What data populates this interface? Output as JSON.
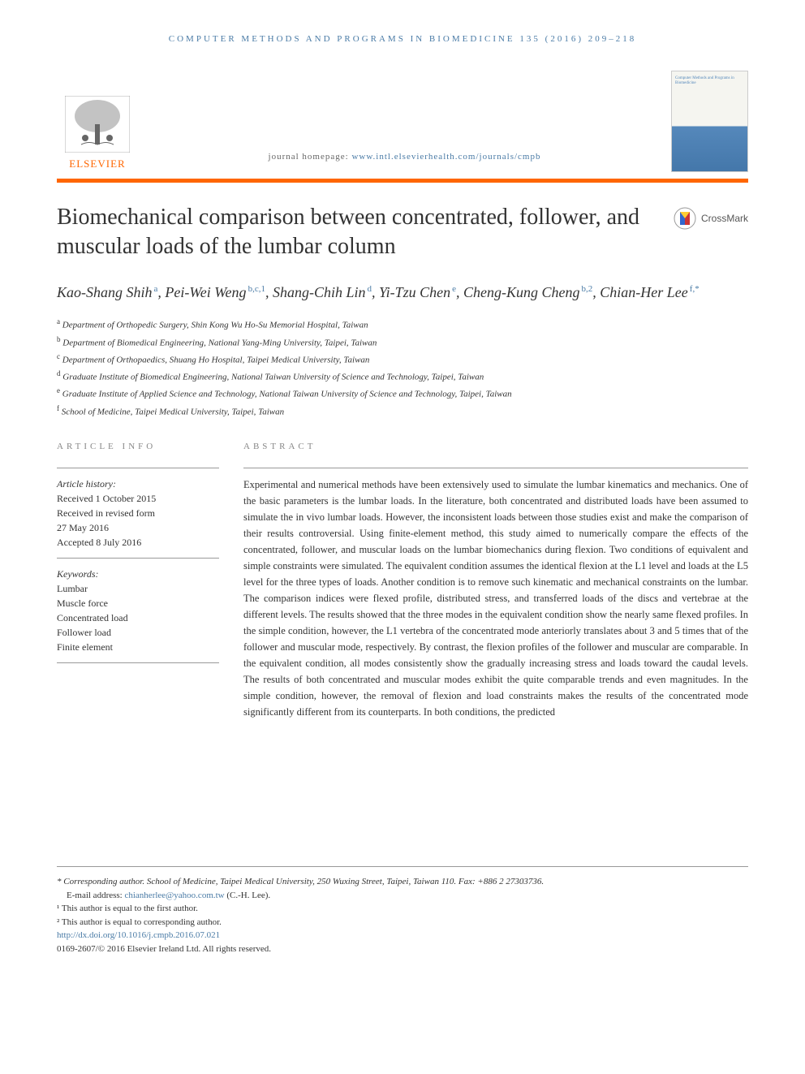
{
  "running_header": "COMPUTER METHODS AND PROGRAMS IN BIOMEDICINE 135 (2016) 209–218",
  "journal_homepage_label": "journal homepage: ",
  "journal_homepage_url": "www.intl.elsevierhealth.com/journals/cmpb",
  "publisher": "ELSEVIER",
  "journal_cover_title": "Computer Methods and Programs in Biomedicine",
  "crossmark_label": "CrossMark",
  "title": "Biomechanical comparison between concentrated, follower, and muscular loads of the lumbar column",
  "authors": [
    {
      "name": "Kao-Shang Shih",
      "affil": "a"
    },
    {
      "name": "Pei-Wei Weng",
      "affil": "b,c,1"
    },
    {
      "name": "Shang-Chih Lin",
      "affil": "d"
    },
    {
      "name": "Yi-Tzu Chen",
      "affil": "e"
    },
    {
      "name": "Cheng-Kung Cheng",
      "affil": "b,2"
    },
    {
      "name": "Chian-Her Lee",
      "affil": "f,*"
    }
  ],
  "affiliations": [
    {
      "sup": "a",
      "text": "Department of Orthopedic Surgery, Shin Kong Wu Ho-Su Memorial Hospital, Taiwan"
    },
    {
      "sup": "b",
      "text": "Department of Biomedical Engineering, National Yang-Ming University, Taipei, Taiwan"
    },
    {
      "sup": "c",
      "text": "Department of Orthopaedics, Shuang Ho Hospital, Taipei Medical University, Taiwan"
    },
    {
      "sup": "d",
      "text": "Graduate Institute of Biomedical Engineering, National Taiwan University of Science and Technology, Taipei, Taiwan"
    },
    {
      "sup": "e",
      "text": "Graduate Institute of Applied Science and Technology, National Taiwan University of Science and Technology, Taipei, Taiwan"
    },
    {
      "sup": "f",
      "text": "School of Medicine, Taipei Medical University, Taipei, Taiwan"
    }
  ],
  "article_info_header": "ARTICLE INFO",
  "abstract_header": "ABSTRACT",
  "article_history_label": "Article history:",
  "article_history": [
    "Received 1 October 2015",
    "Received in revised form",
    "27 May 2016",
    "Accepted 8 July 2016"
  ],
  "keywords_label": "Keywords:",
  "keywords": [
    "Lumbar",
    "Muscle force",
    "Concentrated load",
    "Follower load",
    "Finite element"
  ],
  "abstract": "Experimental and numerical methods have been extensively used to simulate the lumbar kinematics and mechanics. One of the basic parameters is the lumbar loads. In the literature, both concentrated and distributed loads have been assumed to simulate the in vivo lumbar loads. However, the inconsistent loads between those studies exist and make the comparison of their results controversial. Using finite-element method, this study aimed to numerically compare the effects of the concentrated, follower, and muscular loads on the lumbar biomechanics during flexion. Two conditions of equivalent and simple constraints were simulated. The equivalent condition assumes the identical flexion at the L1 level and loads at the L5 level for the three types of loads. Another condition is to remove such kinematic and mechanical constraints on the lumbar. The comparison indices were flexed profile, distributed stress, and transferred loads of the discs and vertebrae at the different levels. The results showed that the three modes in the equivalent condition show the nearly same flexed profiles. In the simple condition, however, the L1 vertebra of the concentrated mode anteriorly translates about 3 and 5 times that of the follower and muscular mode, respectively. By contrast, the flexion profiles of the follower and muscular are comparable. In the equivalent condition, all modes consistently show the gradually increasing stress and loads toward the caudal levels. The results of both concentrated and muscular modes exhibit the quite comparable trends and even magnitudes. In the simple condition, however, the removal of flexion and load constraints makes the results of the concentrated mode significantly different from its counterparts. In both conditions, the predicted",
  "footnotes": {
    "corresponding": "* Corresponding author. School of Medicine, Taipei Medical University, 250 Wuxing Street, Taipei, Taiwan 110. Fax: +886 2 27303736.",
    "email_label": "E-mail address: ",
    "email": "chianherlee@yahoo.com.tw",
    "email_suffix": " (C.-H. Lee).",
    "note1": "¹ This author is equal to the first author.",
    "note2": "² This author is equal to corresponding author.",
    "doi": "http://dx.doi.org/10.1016/j.cmpb.2016.07.021",
    "copyright": "0169-2607/© 2016 Elsevier Ireland Ltd. All rights reserved."
  },
  "colors": {
    "orange": "#ff6600",
    "link_blue": "#4a7ba6",
    "text": "#333333",
    "gray_header": "#888888"
  }
}
